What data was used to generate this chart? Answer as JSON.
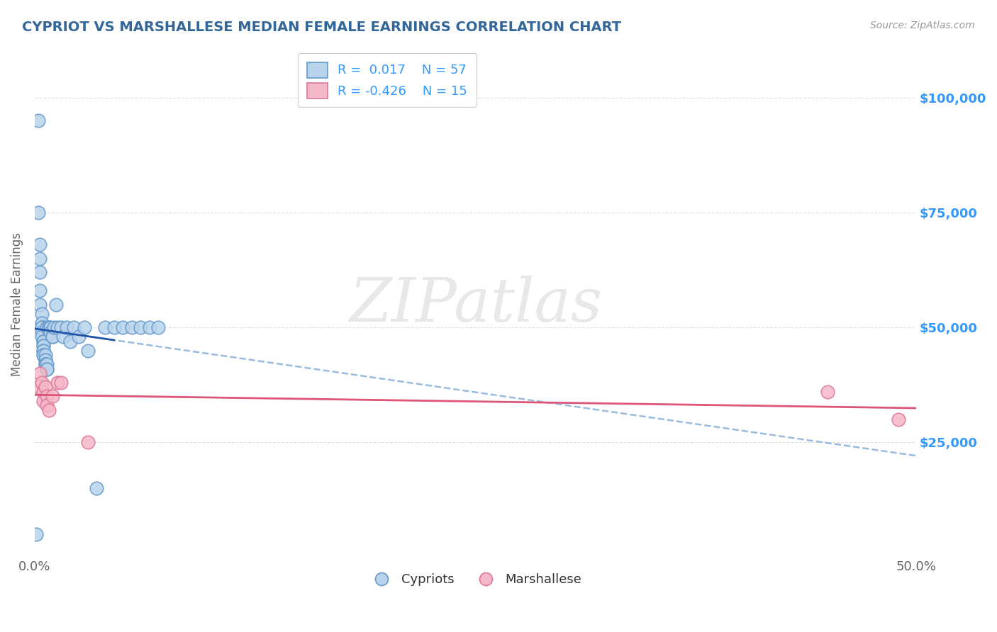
{
  "title": "CYPRIOT VS MARSHALLESE MEDIAN FEMALE EARNINGS CORRELATION CHART",
  "source": "Source: ZipAtlas.com",
  "ylabel": "Median Female Earnings",
  "xlim": [
    0.0,
    0.5
  ],
  "ylim": [
    0,
    110000
  ],
  "yticks": [
    25000,
    50000,
    75000,
    100000
  ],
  "ytick_labels": [
    "$25,000",
    "$50,000",
    "$75,000",
    "$100,000"
  ],
  "xticks": [
    0.0,
    0.5
  ],
  "xtick_labels": [
    "0.0%",
    "50.0%"
  ],
  "bg_color": "#ffffff",
  "grid_color": "#e0e0e0",
  "cypriot_face": "#b8d4ec",
  "cypriot_edge": "#6699cc",
  "marsh_face": "#f5b8c8",
  "marsh_edge": "#dd7799",
  "blue_solid_color": "#2255aa",
  "blue_dash_color": "#99bbdd",
  "pink_color": "#dd5577",
  "title_color": "#336699",
  "right_label_color": "#3399ff",
  "source_color": "#999999",
  "ylabel_color": "#666666",
  "xtick_color": "#666666",
  "legend1_label": "Cypriots",
  "legend2_label": "Marshallese",
  "R1": "0.017",
  "N1": "57",
  "R2": "-0.426",
  "N2": "15",
  "cypriot_x": [
    0.001,
    0.002,
    0.002,
    0.003,
    0.003,
    0.003,
    0.003,
    0.003,
    0.004,
    0.004,
    0.004,
    0.004,
    0.004,
    0.004,
    0.005,
    0.005,
    0.005,
    0.005,
    0.005,
    0.005,
    0.005,
    0.005,
    0.006,
    0.006,
    0.006,
    0.006,
    0.006,
    0.007,
    0.007,
    0.007,
    0.007,
    0.008,
    0.008,
    0.008,
    0.009,
    0.009,
    0.01,
    0.01,
    0.011,
    0.012,
    0.013,
    0.015,
    0.016,
    0.018,
    0.02,
    0.022,
    0.025,
    0.028,
    0.03,
    0.035,
    0.04,
    0.045,
    0.05,
    0.055,
    0.06,
    0.065,
    0.07
  ],
  "cypriot_y": [
    5000,
    95000,
    75000,
    68000,
    65000,
    62000,
    58000,
    55000,
    53000,
    51000,
    50000,
    50000,
    49000,
    48000,
    47000,
    47000,
    46000,
    46000,
    45000,
    45000,
    44000,
    44000,
    44000,
    43000,
    43000,
    42000,
    42000,
    42000,
    41000,
    41000,
    50000,
    50000,
    50000,
    50000,
    50000,
    49000,
    48000,
    48000,
    50000,
    55000,
    50000,
    50000,
    48000,
    50000,
    47000,
    50000,
    48000,
    50000,
    45000,
    15000,
    50000,
    50000,
    50000,
    50000,
    50000,
    50000,
    50000
  ],
  "marsh_x": [
    0.002,
    0.003,
    0.004,
    0.005,
    0.005,
    0.006,
    0.007,
    0.007,
    0.008,
    0.01,
    0.013,
    0.015,
    0.03,
    0.45,
    0.49
  ],
  "marsh_y": [
    37000,
    40000,
    38000,
    36000,
    34000,
    37000,
    35000,
    33000,
    32000,
    35000,
    38000,
    38000,
    25000,
    36000,
    30000
  ],
  "blue_solid_xrange": [
    0.0,
    0.045
  ],
  "blue_dash_xrange": [
    0.0,
    0.5
  ]
}
